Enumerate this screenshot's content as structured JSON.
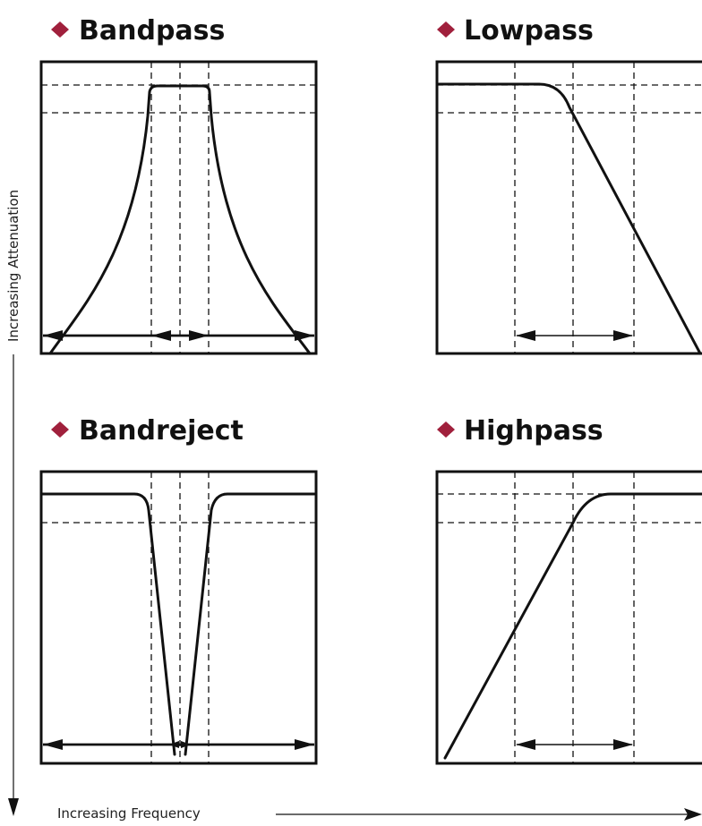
{
  "panels": {
    "bandpass": {
      "title": "Bandpass"
    },
    "lowpass": {
      "title": "Lowpass"
    },
    "bandreject": {
      "title": "Bandreject"
    },
    "highpass": {
      "title": "Highpass"
    }
  },
  "axes": {
    "y_label": "Increasing Attenuation",
    "x_label": "Increasing Frequency"
  },
  "colors": {
    "bullet": "#a0203c",
    "ink": "#111111"
  },
  "icons": {
    "bullet": "diamond-bullet-icon"
  }
}
